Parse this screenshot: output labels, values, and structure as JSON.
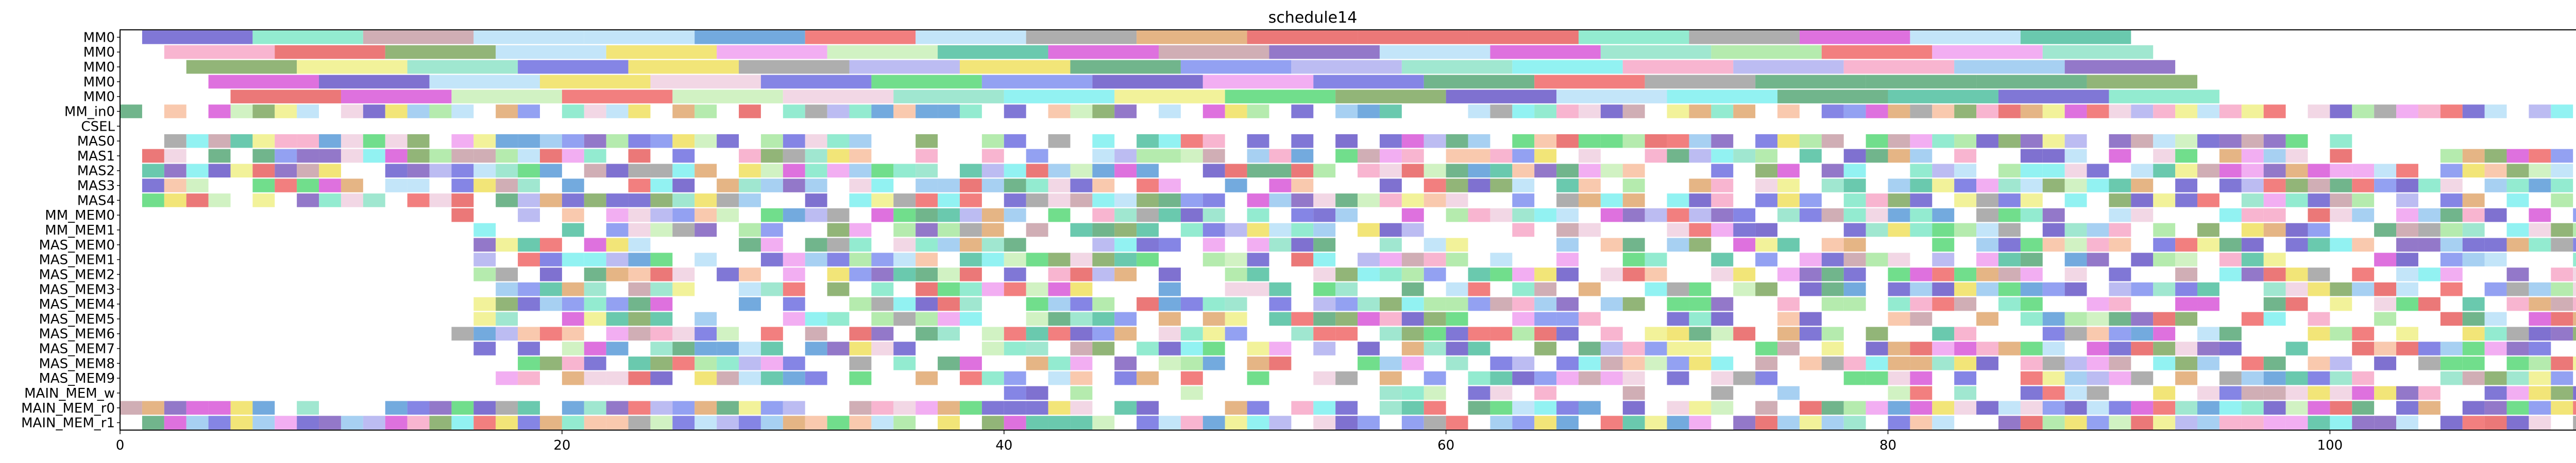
{
  "chart_data": {
    "type": "gantt",
    "title": "schedule14",
    "xlabel": "",
    "ylabel": "",
    "xlim": [
      0,
      113
    ],
    "xticks": [
      0,
      20,
      40,
      60,
      80,
      100
    ],
    "grid": false,
    "rows": [
      "MM0",
      "MM0",
      "MM0",
      "MM0",
      "MM0",
      "MM_in0",
      "CSEL",
      "MAS0",
      "MAS1",
      "MAS2",
      "MAS3",
      "MAS4",
      "MM_MEM0",
      "MM_MEM1",
      "MAS_MEM0",
      "MAS_MEM1",
      "MAS_MEM2",
      "MAS_MEM3",
      "MAS_MEM4",
      "MAS_MEM5",
      "MAS_MEM6",
      "MAS_MEM7",
      "MAS_MEM8",
      "MAS_MEM9",
      "MAIN_MEM_w",
      "MAIN_MEM_r0",
      "MAIN_MEM_r1"
    ],
    "palette": [
      "#f7a8c8",
      "#8fe3c8",
      "#c9f0b8",
      "#5a9bd8",
      "#6a5fcf",
      "#7fa860",
      "#7ff0f0",
      "#f8c0a0",
      "#e0a870",
      "#80e8c8",
      "#a8e8a0",
      "#6858c8",
      "#8090f0",
      "#98c8f0",
      "#f0d0e0",
      "#c8a0a8",
      "#7070e0",
      "#f0a0f0",
      "#58d878",
      "#b0b0f0",
      "#f06868",
      "#f0f088",
      "#58a878",
      "#d858d8",
      "#b8e0f8",
      "#e86060",
      "#a0a0a0",
      "#8060c0",
      "#50c0a0",
      "#f0e060"
    ],
    "lanes": [
      {
        "row": 0,
        "start": 1,
        "dur": 5,
        "n": 18
      },
      {
        "row": 1,
        "start": 2,
        "dur": 5,
        "n": 18
      },
      {
        "row": 2,
        "start": 3,
        "dur": 5,
        "n": 18
      },
      {
        "row": 3,
        "start": 4,
        "dur": 5,
        "n": 18
      },
      {
        "row": 4,
        "start": 5,
        "dur": 5,
        "n": 18
      },
      {
        "row": 5,
        "start": 0,
        "dur": 1,
        "n": 113,
        "density": 0.85
      },
      {
        "row": 7,
        "start": 1,
        "dur": 1,
        "n": 100,
        "density": 0.8
      },
      {
        "row": 8,
        "start": 1,
        "dur": 1,
        "n": 110,
        "density": 0.8
      },
      {
        "row": 9,
        "start": 1,
        "dur": 1,
        "n": 110,
        "density": 0.75
      },
      {
        "row": 10,
        "start": 1,
        "dur": 1,
        "n": 110,
        "density": 0.75
      },
      {
        "row": 11,
        "start": 1,
        "dur": 1,
        "n": 110,
        "density": 0.75
      },
      {
        "row": 12,
        "start": 15,
        "dur": 1,
        "n": 98,
        "density": 0.75
      },
      {
        "row": 13,
        "start": 15,
        "dur": 1,
        "n": 98,
        "density": 0.7
      },
      {
        "row": 14,
        "start": 16,
        "dur": 1,
        "n": 97,
        "density": 0.7
      },
      {
        "row": 15,
        "start": 16,
        "dur": 1,
        "n": 97,
        "density": 0.7
      },
      {
        "row": 16,
        "start": 16,
        "dur": 1,
        "n": 97,
        "density": 0.7
      },
      {
        "row": 17,
        "start": 16,
        "dur": 1,
        "n": 97,
        "density": 0.7
      },
      {
        "row": 18,
        "start": 16,
        "dur": 1,
        "n": 97,
        "density": 0.7
      },
      {
        "row": 19,
        "start": 16,
        "dur": 1,
        "n": 97,
        "density": 0.7
      },
      {
        "row": 20,
        "start": 15,
        "dur": 1,
        "n": 98,
        "density": 0.7
      },
      {
        "row": 21,
        "start": 15,
        "dur": 1,
        "n": 98,
        "density": 0.7
      },
      {
        "row": 22,
        "start": 16,
        "dur": 1,
        "n": 97,
        "density": 0.7
      },
      {
        "row": 23,
        "start": 16,
        "dur": 1,
        "n": 97,
        "density": 0.65
      },
      {
        "row": 24,
        "start": 40,
        "dur": 1,
        "n": 73,
        "density": 0.45
      },
      {
        "row": 25,
        "start": 0,
        "dur": 1,
        "n": 112,
        "density": 0.88
      },
      {
        "row": 26,
        "start": 0,
        "dur": 1,
        "n": 113,
        "density": 0.88
      }
    ]
  }
}
